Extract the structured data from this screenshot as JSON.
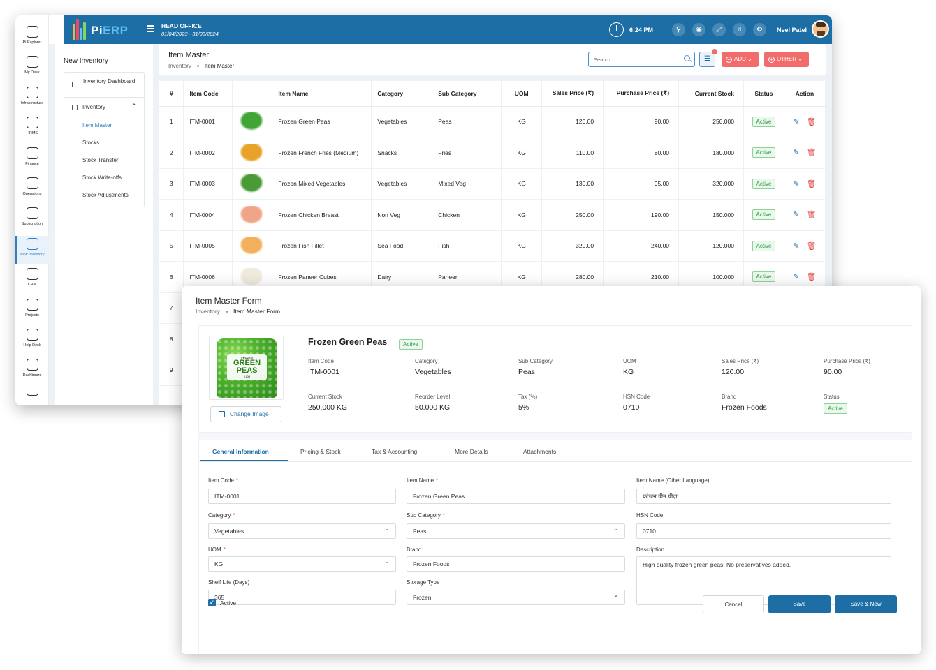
{
  "header": {
    "logo_pi": "Pi",
    "logo_erp": "ERP",
    "office_title": "HEAD OFFICE",
    "office_dates": "01/04/2023 - 31/03/2024",
    "time": "6:24 PM",
    "user_name": "Neel Patel"
  },
  "leftnav": [
    {
      "label": "Pi Explorer",
      "icon": "compass-icon"
    },
    {
      "label": "My Desk",
      "icon": "desk-icon"
    },
    {
      "label": "Infrastructure",
      "icon": "infrastructure-icon"
    },
    {
      "label": "HRMS",
      "icon": "hrms-icon"
    },
    {
      "label": "Finance",
      "icon": "finance-icon"
    },
    {
      "label": "Operations",
      "icon": "operations-icon"
    },
    {
      "label": "Subscription",
      "icon": "subscription-icon"
    },
    {
      "label": "New Inventory",
      "icon": "inventory-icon",
      "active": true
    },
    {
      "label": "CRM",
      "icon": "crm-icon"
    },
    {
      "label": "Projects",
      "icon": "projects-icon"
    },
    {
      "label": "Help Desk",
      "icon": "helpdesk-icon"
    },
    {
      "label": "Dashboard",
      "icon": "dashboard-icon"
    }
  ],
  "subnav": {
    "title": "New Inventory",
    "dashboard": "Inventory Dashboard",
    "group": "Inventory",
    "items": [
      "Item Master",
      "Stocks",
      "Stock Transfer",
      "Stock Write-offs",
      "Stock Adjustments"
    ]
  },
  "list_page": {
    "title": "Item Master",
    "breadcrumb_root": "Inventory",
    "breadcrumb_current": "Item Master",
    "search_placeholder": "Search...",
    "filter_badge_color": "#f36b6b",
    "add_label": "ADD",
    "other_label": "OTHER"
  },
  "table": {
    "columns": [
      "#",
      "Item Code",
      "",
      "Item Name",
      "Category",
      "Sub Category",
      "UOM",
      "Sales Price (₹)",
      "Purchase Price (₹)",
      "Current Stock",
      "Status",
      "Action"
    ],
    "rows": [
      {
        "n": "1",
        "code": "ITM-0001",
        "name": "Frozen Green Peas",
        "category": "Vegetables",
        "sub": "Peas",
        "uom": "KG",
        "sales": "120.00",
        "purchase": "90.00",
        "stock": "250.000",
        "status": "Active",
        "color": "#3fa534"
      },
      {
        "n": "2",
        "code": "ITM-0002",
        "name": "Frozen French Fries (Medium)",
        "category": "Snacks",
        "sub": "Fries",
        "uom": "KG",
        "sales": "110.00",
        "purchase": "80.00",
        "stock": "180.000",
        "status": "Active",
        "color": "#e8a227"
      },
      {
        "n": "3",
        "code": "ITM-0003",
        "name": "Frozen Mixed Vegetables",
        "category": "Vegetables",
        "sub": "Mixed Veg",
        "uom": "KG",
        "sales": "130.00",
        "purchase": "95.00",
        "stock": "320.000",
        "status": "Active",
        "color": "#4a9a35"
      },
      {
        "n": "4",
        "code": "ITM-0004",
        "name": "Frozen Chicken Breast",
        "category": "Non Veg",
        "sub": "Chicken",
        "uom": "KG",
        "sales": "250.00",
        "purchase": "190.00",
        "stock": "150.000",
        "status": "Active",
        "color": "#f0a588"
      },
      {
        "n": "5",
        "code": "ITM-0005",
        "name": "Frozen Fish Fillet",
        "category": "Sea Food",
        "sub": "Fish",
        "uom": "KG",
        "sales": "320.00",
        "purchase": "240.00",
        "stock": "120.000",
        "status": "Active",
        "color": "#f2b05a"
      },
      {
        "n": "6",
        "code": "ITM-0006",
        "name": "Frozen Paneer Cubes",
        "category": "Dairy",
        "sub": "Paneer",
        "uom": "KG",
        "sales": "280.00",
        "purchase": "210.00",
        "stock": "100.000",
        "status": "Active",
        "color": "#eeeadc"
      },
      {
        "n": "7",
        "code": "",
        "name": "",
        "category": "",
        "sub": "",
        "uom": "",
        "sales": "",
        "purchase": "",
        "stock": "",
        "status": "",
        "color": ""
      },
      {
        "n": "8",
        "code": "",
        "name": "",
        "category": "",
        "sub": "",
        "uom": "",
        "sales": "",
        "purchase": "",
        "stock": "",
        "status": "",
        "color": ""
      },
      {
        "n": "9",
        "code": "",
        "name": "",
        "category": "",
        "sub": "",
        "uom": "",
        "sales": "",
        "purchase": "",
        "stock": "",
        "status": "",
        "color": ""
      }
    ]
  },
  "form": {
    "title": "Item Master Form",
    "breadcrumb_root": "Inventory",
    "breadcrumb_current": "Item Master Form",
    "bag_top": "FROZEN",
    "bag_text": "GREEN PEAS",
    "bag_weight": "1 KG",
    "change_image": "Change Image",
    "product_name": "Frozen Green Peas",
    "product_status": "Active",
    "summary": [
      {
        "label": "Item Code",
        "value": "ITM-0001"
      },
      {
        "label": "Category",
        "value": "Vegetables"
      },
      {
        "label": "Sub Category",
        "value": "Peas"
      },
      {
        "label": "UOM",
        "value": "KG"
      },
      {
        "label": "Sales Price (₹)",
        "value": "120.00"
      },
      {
        "label": "Purchase Price (₹)",
        "value": "90.00"
      },
      {
        "label": "Current Stock",
        "value": "250.000 KG"
      },
      {
        "label": "Reorder Level",
        "value": "50.000 KG"
      },
      {
        "label": "Tax (%)",
        "value": "5%"
      },
      {
        "label": "HSN Code",
        "value": "0710"
      },
      {
        "label": "Brand",
        "value": "Frozen Foods"
      },
      {
        "label": "Status",
        "value": "Active"
      }
    ],
    "tabs": [
      "General Information",
      "Pricing & Stock",
      "Tax & Accounting",
      "More Details",
      "Attachments"
    ],
    "fields": {
      "item_code": {
        "label": "Item Code",
        "value": "ITM-0001"
      },
      "item_name": {
        "label": "Item Name",
        "value": "Frozen Green Peas"
      },
      "item_name_other": {
        "label": "Item Name (Other Language)",
        "value": "फ्रोजन ग्रीन पीज़"
      },
      "category": {
        "label": "Category",
        "value": "Vegetables"
      },
      "sub_category": {
        "label": "Sub Category",
        "value": "Peas"
      },
      "hsn_code": {
        "label": "HSN Code",
        "value": "0710"
      },
      "uom": {
        "label": "UOM",
        "value": "KG"
      },
      "brand": {
        "label": "Brand",
        "value": "Frozen Foods"
      },
      "description": {
        "label": "Description",
        "value": "High quality frozen green peas. No preservatives added."
      },
      "shelf_life": {
        "label": "Shelf Life (Days)",
        "value": "365"
      },
      "storage_type": {
        "label": "Storage Type",
        "value": "Frozen"
      }
    },
    "active_label": "Active",
    "cancel": "Cancel",
    "save": "Save",
    "save_new": "Save & New"
  }
}
